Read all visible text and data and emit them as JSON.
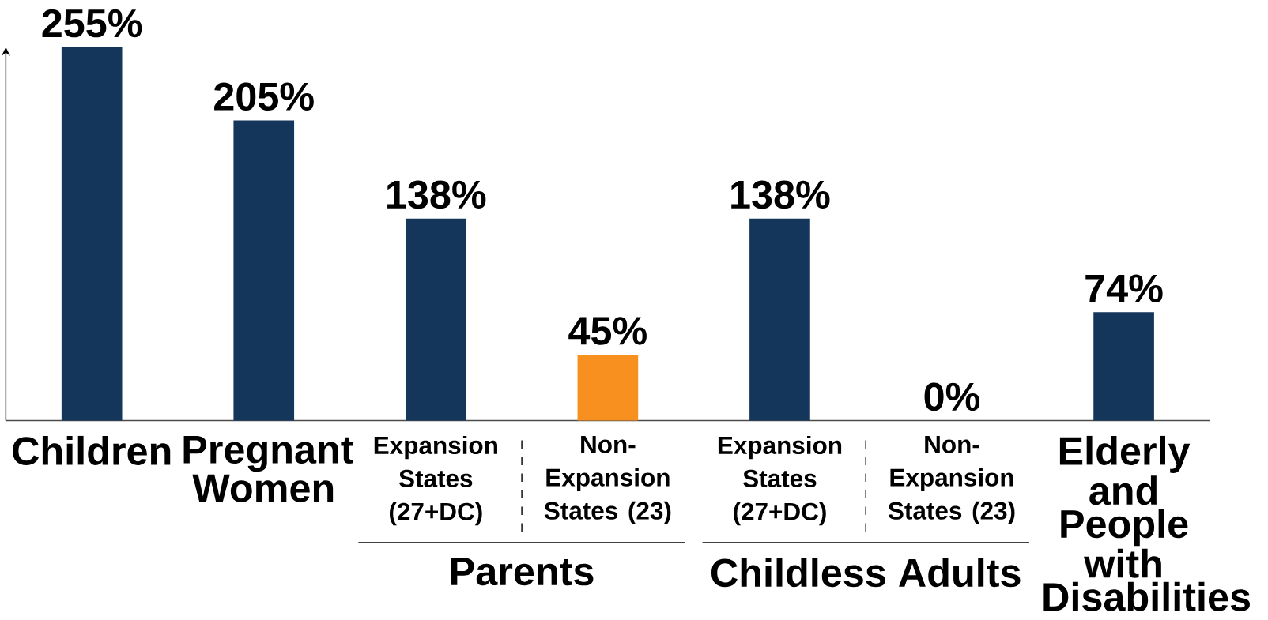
{
  "chart_data": {
    "type": "bar",
    "relative": false,
    "categories": [
      "Children",
      "Pregnant Women",
      "Expansion States (27+DC)",
      "Non-Expansion States (23)",
      "Expansion States (27+DC)",
      "Non-Expansion States (23)",
      "Elderly and People with Disabilities"
    ],
    "values": [
      255,
      205,
      138,
      45,
      138,
      0,
      74
    ],
    "value_labels": [
      "255%",
      "205%",
      "138%",
      "45%",
      "138%",
      "0%",
      "74%"
    ],
    "colors": [
      "#14365a",
      "#14365a",
      "#14365a",
      "#f7901e",
      "#14365a",
      "#f7901e",
      "#14365a"
    ],
    "annotations": [
      "Parents",
      "Childless Adults"
    ]
  }
}
